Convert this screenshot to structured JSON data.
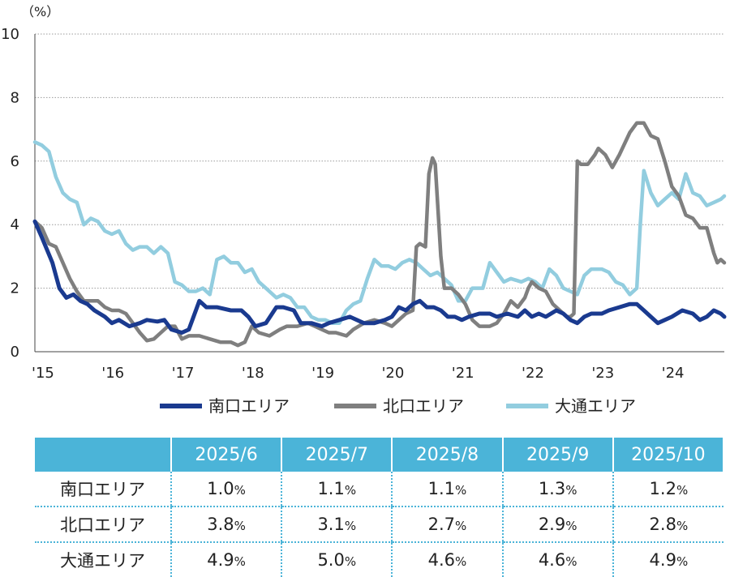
{
  "chart_data": {
    "type": "line",
    "ylabel_unit": "（%）",
    "ylim": [
      0,
      10
    ],
    "yticks": [
      "0",
      "2",
      "4",
      "6",
      "8",
      "10"
    ],
    "xlim": [
      2015,
      2024.85
    ],
    "xticks": [
      {
        "v": 2015,
        "label": "'15"
      },
      {
        "v": 2016,
        "label": "'16"
      },
      {
        "v": 2017,
        "label": "'17"
      },
      {
        "v": 2018,
        "label": "'18"
      },
      {
        "v": 2019,
        "label": "'19"
      },
      {
        "v": 2020,
        "label": "'20"
      },
      {
        "v": 2021,
        "label": "'21"
      },
      {
        "v": 2022,
        "label": "'22"
      },
      {
        "v": 2023,
        "label": "'23"
      },
      {
        "v": 2024,
        "label": "'24"
      }
    ],
    "grid": true,
    "legend_position": "bottom",
    "series": [
      {
        "name": "南口エリア",
        "color": "#1a3a8f",
        "points": [
          [
            2015.0,
            4.1
          ],
          [
            2015.1,
            3.6
          ],
          [
            2015.25,
            2.8
          ],
          [
            2015.35,
            2.0
          ],
          [
            2015.45,
            1.7
          ],
          [
            2015.55,
            1.8
          ],
          [
            2015.65,
            1.6
          ],
          [
            2015.75,
            1.5
          ],
          [
            2015.85,
            1.3
          ],
          [
            2016.0,
            1.1
          ],
          [
            2016.1,
            0.9
          ],
          [
            2016.2,
            1.0
          ],
          [
            2016.35,
            0.8
          ],
          [
            2016.5,
            0.9
          ],
          [
            2016.6,
            1.0
          ],
          [
            2016.75,
            0.95
          ],
          [
            2016.85,
            1.0
          ],
          [
            2016.95,
            0.7
          ],
          [
            2017.1,
            0.6
          ],
          [
            2017.2,
            0.7
          ],
          [
            2017.35,
            1.6
          ],
          [
            2017.45,
            1.4
          ],
          [
            2017.6,
            1.4
          ],
          [
            2017.8,
            1.3
          ],
          [
            2017.95,
            1.3
          ],
          [
            2018.05,
            1.1
          ],
          [
            2018.15,
            0.8
          ],
          [
            2018.3,
            0.9
          ],
          [
            2018.45,
            1.4
          ],
          [
            2018.55,
            1.4
          ],
          [
            2018.7,
            1.3
          ],
          [
            2018.8,
            0.9
          ],
          [
            2018.95,
            0.9
          ],
          [
            2019.1,
            0.8
          ],
          [
            2019.2,
            0.9
          ],
          [
            2019.35,
            1.0
          ],
          [
            2019.5,
            1.1
          ],
          [
            2019.6,
            1.0
          ],
          [
            2019.7,
            0.9
          ],
          [
            2019.85,
            0.9
          ],
          [
            2020.0,
            1.0
          ],
          [
            2020.1,
            1.1
          ],
          [
            2020.2,
            1.4
          ],
          [
            2020.3,
            1.3
          ],
          [
            2020.4,
            1.5
          ],
          [
            2020.5,
            1.6
          ],
          [
            2020.6,
            1.4
          ],
          [
            2020.7,
            1.4
          ],
          [
            2020.8,
            1.3
          ],
          [
            2020.9,
            1.1
          ],
          [
            2021.0,
            1.1
          ],
          [
            2021.1,
            1.0
          ],
          [
            2021.2,
            1.1
          ],
          [
            2021.35,
            1.2
          ],
          [
            2021.5,
            1.2
          ],
          [
            2021.6,
            1.1
          ],
          [
            2021.75,
            1.2
          ],
          [
            2021.9,
            1.1
          ],
          [
            2022.0,
            1.3
          ],
          [
            2022.1,
            1.1
          ],
          [
            2022.2,
            1.2
          ],
          [
            2022.3,
            1.1
          ],
          [
            2022.45,
            1.3
          ],
          [
            2022.55,
            1.2
          ],
          [
            2022.65,
            1.0
          ],
          [
            2022.75,
            0.9
          ],
          [
            2022.85,
            1.1
          ],
          [
            2022.95,
            1.2
          ],
          [
            2023.1,
            1.2
          ],
          [
            2023.2,
            1.3
          ],
          [
            2023.35,
            1.4
          ],
          [
            2023.5,
            1.5
          ],
          [
            2023.6,
            1.5
          ],
          [
            2023.7,
            1.3
          ],
          [
            2023.8,
            1.1
          ],
          [
            2023.9,
            0.9
          ],
          [
            2024.0,
            1.0
          ],
          [
            2024.1,
            1.1
          ],
          [
            2024.25,
            1.3
          ],
          [
            2024.4,
            1.2
          ],
          [
            2024.5,
            1.0
          ],
          [
            2024.6,
            1.1
          ],
          [
            2024.7,
            1.3
          ],
          [
            2024.8,
            1.2
          ],
          [
            2024.85,
            1.1
          ]
        ]
      },
      {
        "name": "北口エリア",
        "color": "#7f7f7f",
        "points": [
          [
            2015.0,
            4.1
          ],
          [
            2015.1,
            3.9
          ],
          [
            2015.2,
            3.4
          ],
          [
            2015.3,
            3.3
          ],
          [
            2015.4,
            2.8
          ],
          [
            2015.5,
            2.3
          ],
          [
            2015.6,
            1.9
          ],
          [
            2015.7,
            1.6
          ],
          [
            2015.8,
            1.6
          ],
          [
            2015.9,
            1.6
          ],
          [
            2016.0,
            1.4
          ],
          [
            2016.1,
            1.3
          ],
          [
            2016.2,
            1.3
          ],
          [
            2016.3,
            1.2
          ],
          [
            2016.4,
            0.9
          ],
          [
            2016.5,
            0.6
          ],
          [
            2016.6,
            0.35
          ],
          [
            2016.7,
            0.4
          ],
          [
            2016.8,
            0.6
          ],
          [
            2016.9,
            0.8
          ],
          [
            2017.0,
            0.8
          ],
          [
            2017.1,
            0.4
          ],
          [
            2017.2,
            0.5
          ],
          [
            2017.35,
            0.5
          ],
          [
            2017.5,
            0.4
          ],
          [
            2017.65,
            0.3
          ],
          [
            2017.8,
            0.3
          ],
          [
            2017.9,
            0.2
          ],
          [
            2018.0,
            0.3
          ],
          [
            2018.1,
            0.8
          ],
          [
            2018.2,
            0.6
          ],
          [
            2018.35,
            0.5
          ],
          [
            2018.5,
            0.7
          ],
          [
            2018.6,
            0.8
          ],
          [
            2018.75,
            0.8
          ],
          [
            2018.9,
            0.9
          ],
          [
            2019.0,
            0.8
          ],
          [
            2019.1,
            0.7
          ],
          [
            2019.2,
            0.6
          ],
          [
            2019.3,
            0.6
          ],
          [
            2019.45,
            0.5
          ],
          [
            2019.55,
            0.7
          ],
          [
            2019.7,
            0.9
          ],
          [
            2019.85,
            1.0
          ],
          [
            2020.0,
            0.9
          ],
          [
            2020.1,
            0.8
          ],
          [
            2020.2,
            1.0
          ],
          [
            2020.3,
            1.2
          ],
          [
            2020.4,
            1.3
          ],
          [
            2020.45,
            3.3
          ],
          [
            2020.5,
            3.4
          ],
          [
            2020.58,
            3.3
          ],
          [
            2020.63,
            5.6
          ],
          [
            2020.68,
            6.1
          ],
          [
            2020.72,
            5.9
          ],
          [
            2020.8,
            3.0
          ],
          [
            2020.85,
            2.0
          ],
          [
            2020.95,
            2.0
          ],
          [
            2021.05,
            1.8
          ],
          [
            2021.15,
            1.5
          ],
          [
            2021.25,
            1.0
          ],
          [
            2021.35,
            0.8
          ],
          [
            2021.5,
            0.8
          ],
          [
            2021.6,
            0.9
          ],
          [
            2021.7,
            1.2
          ],
          [
            2021.8,
            1.6
          ],
          [
            2021.9,
            1.4
          ],
          [
            2022.0,
            1.7
          ],
          [
            2022.05,
            2.0
          ],
          [
            2022.1,
            2.2
          ],
          [
            2022.2,
            2.0
          ],
          [
            2022.3,
            1.9
          ],
          [
            2022.4,
            1.5
          ],
          [
            2022.5,
            1.3
          ],
          [
            2022.6,
            1.1
          ],
          [
            2022.65,
            1.1
          ],
          [
            2022.7,
            1.2
          ],
          [
            2022.75,
            6.0
          ],
          [
            2022.8,
            5.9
          ],
          [
            2022.9,
            5.9
          ],
          [
            2023.0,
            6.2
          ],
          [
            2023.05,
            6.4
          ],
          [
            2023.15,
            6.2
          ],
          [
            2023.25,
            5.8
          ],
          [
            2023.35,
            6.2
          ],
          [
            2023.5,
            6.9
          ],
          [
            2023.6,
            7.2
          ],
          [
            2023.7,
            7.2
          ],
          [
            2023.8,
            6.8
          ],
          [
            2023.9,
            6.7
          ],
          [
            2024.0,
            6.0
          ],
          [
            2024.1,
            5.2
          ],
          [
            2024.2,
            4.9
          ],
          [
            2024.3,
            4.3
          ],
          [
            2024.4,
            4.2
          ],
          [
            2024.5,
            3.9
          ],
          [
            2024.6,
            3.9
          ],
          [
            2024.7,
            3.1
          ],
          [
            2024.75,
            2.8
          ],
          [
            2024.8,
            2.9
          ],
          [
            2024.85,
            2.8
          ]
        ]
      },
      {
        "name": "大通エリア",
        "color": "#92cddf",
        "points": [
          [
            2015.0,
            6.6
          ],
          [
            2015.1,
            6.5
          ],
          [
            2015.2,
            6.3
          ],
          [
            2015.3,
            5.5
          ],
          [
            2015.4,
            5.0
          ],
          [
            2015.5,
            4.8
          ],
          [
            2015.6,
            4.7
          ],
          [
            2015.7,
            4.0
          ],
          [
            2015.8,
            4.2
          ],
          [
            2015.9,
            4.1
          ],
          [
            2016.0,
            3.8
          ],
          [
            2016.1,
            3.7
          ],
          [
            2016.2,
            3.8
          ],
          [
            2016.3,
            3.4
          ],
          [
            2016.4,
            3.2
          ],
          [
            2016.5,
            3.3
          ],
          [
            2016.6,
            3.3
          ],
          [
            2016.7,
            3.1
          ],
          [
            2016.8,
            3.3
          ],
          [
            2016.9,
            3.1
          ],
          [
            2017.0,
            2.2
          ],
          [
            2017.1,
            2.1
          ],
          [
            2017.2,
            1.9
          ],
          [
            2017.3,
            1.9
          ],
          [
            2017.4,
            2.0
          ],
          [
            2017.5,
            1.8
          ],
          [
            2017.6,
            2.9
          ],
          [
            2017.7,
            3.0
          ],
          [
            2017.8,
            2.8
          ],
          [
            2017.9,
            2.8
          ],
          [
            2018.0,
            2.5
          ],
          [
            2018.1,
            2.6
          ],
          [
            2018.2,
            2.2
          ],
          [
            2018.3,
            2.0
          ],
          [
            2018.45,
            1.7
          ],
          [
            2018.55,
            1.8
          ],
          [
            2018.65,
            1.7
          ],
          [
            2018.75,
            1.4
          ],
          [
            2018.85,
            1.4
          ],
          [
            2018.95,
            1.1
          ],
          [
            2019.05,
            1.0
          ],
          [
            2019.15,
            1.0
          ],
          [
            2019.25,
            0.9
          ],
          [
            2019.35,
            0.9
          ],
          [
            2019.45,
            1.3
          ],
          [
            2019.55,
            1.5
          ],
          [
            2019.65,
            1.6
          ],
          [
            2019.75,
            2.3
          ],
          [
            2019.85,
            2.9
          ],
          [
            2019.95,
            2.7
          ],
          [
            2020.05,
            2.7
          ],
          [
            2020.15,
            2.6
          ],
          [
            2020.25,
            2.8
          ],
          [
            2020.35,
            2.9
          ],
          [
            2020.45,
            2.8
          ],
          [
            2020.55,
            2.6
          ],
          [
            2020.65,
            2.4
          ],
          [
            2020.75,
            2.5
          ],
          [
            2020.85,
            2.3
          ],
          [
            2020.95,
            2.1
          ],
          [
            2021.05,
            1.6
          ],
          [
            2021.15,
            1.6
          ],
          [
            2021.25,
            2.0
          ],
          [
            2021.4,
            2.0
          ],
          [
            2021.5,
            2.8
          ],
          [
            2021.6,
            2.5
          ],
          [
            2021.7,
            2.2
          ],
          [
            2021.8,
            2.3
          ],
          [
            2021.95,
            2.2
          ],
          [
            2022.05,
            2.3
          ],
          [
            2022.15,
            2.2
          ],
          [
            2022.25,
            2.0
          ],
          [
            2022.35,
            2.6
          ],
          [
            2022.45,
            2.4
          ],
          [
            2022.55,
            2.0
          ],
          [
            2022.65,
            1.9
          ],
          [
            2022.75,
            1.8
          ],
          [
            2022.85,
            2.4
          ],
          [
            2022.95,
            2.6
          ],
          [
            2023.1,
            2.6
          ],
          [
            2023.2,
            2.5
          ],
          [
            2023.3,
            2.2
          ],
          [
            2023.4,
            2.1
          ],
          [
            2023.5,
            1.8
          ],
          [
            2023.6,
            2.0
          ],
          [
            2023.65,
            4.0
          ],
          [
            2023.7,
            5.7
          ],
          [
            2023.8,
            5.0
          ],
          [
            2023.9,
            4.6
          ],
          [
            2024.0,
            4.8
          ],
          [
            2024.1,
            5.0
          ],
          [
            2024.2,
            4.8
          ],
          [
            2024.3,
            5.6
          ],
          [
            2024.4,
            5.0
          ],
          [
            2024.5,
            4.9
          ],
          [
            2024.6,
            4.6
          ],
          [
            2024.7,
            4.7
          ],
          [
            2024.8,
            4.8
          ],
          [
            2024.85,
            4.9
          ]
        ]
      }
    ]
  },
  "table": {
    "headers": [
      "2025/6",
      "2025/7",
      "2025/8",
      "2025/9",
      "2025/10"
    ],
    "rows": [
      {
        "label": "南口エリア",
        "values": [
          "1.0",
          "1.1",
          "1.1",
          "1.3",
          "1.2"
        ]
      },
      {
        "label": "北口エリア",
        "values": [
          "3.8",
          "3.1",
          "2.7",
          "2.9",
          "2.8"
        ]
      },
      {
        "label": "大通エリア",
        "values": [
          "4.9",
          "5.0",
          "4.6",
          "4.6",
          "4.9"
        ]
      }
    ],
    "pct_sign": "%"
  }
}
